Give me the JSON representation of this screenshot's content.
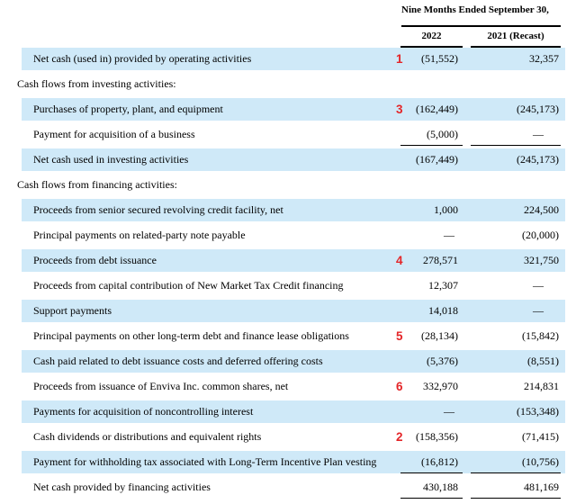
{
  "title": "Condensed consolidated statement of cash flows excerpt",
  "colors": {
    "highlight": "#cfe9f8",
    "annotation_red": "#e42528",
    "rule": "#000000",
    "text": "#000000"
  },
  "header": {
    "period_label": "Nine Months Ended September 30,",
    "col1": "2022",
    "col2": "2021 (Recast)"
  },
  "rows": [
    {
      "type": "item",
      "highlight": true,
      "marker": "1",
      "label": "Net cash (used in) provided by operating activities",
      "v2022": "(51,552)",
      "v2021": "32,357",
      "rule_below": false
    },
    {
      "type": "section",
      "highlight": false,
      "marker": "",
      "label": "Cash flows from investing activities:",
      "v2022": "",
      "v2021": "",
      "rule_below": false
    },
    {
      "type": "item",
      "highlight": true,
      "marker": "3",
      "label": "Purchases of property, plant, and equipment",
      "v2022": "(162,449)",
      "v2021": "(245,173)",
      "rule_below": false
    },
    {
      "type": "item",
      "highlight": false,
      "marker": "",
      "label": "Payment for acquisition of a business",
      "v2022": "(5,000)",
      "v2021": "—",
      "rule_below": true
    },
    {
      "type": "item",
      "highlight": true,
      "marker": "",
      "label": "Net cash used in investing activities",
      "v2022": "(167,449)",
      "v2021": "(245,173)",
      "rule_below": false
    },
    {
      "type": "section",
      "highlight": false,
      "marker": "",
      "label": "Cash flows from financing activities:",
      "v2022": "",
      "v2021": "",
      "rule_below": false
    },
    {
      "type": "item",
      "highlight": true,
      "marker": "",
      "label": "Proceeds from senior secured revolving credit facility, net",
      "v2022": "1,000",
      "v2021": "224,500",
      "rule_below": false
    },
    {
      "type": "item",
      "highlight": false,
      "marker": "",
      "label": "Principal payments on related-party note payable",
      "v2022": "—",
      "v2021": "(20,000)",
      "rule_below": false
    },
    {
      "type": "item",
      "highlight": true,
      "marker": "4",
      "label": "Proceeds from debt issuance",
      "v2022": "278,571",
      "v2021": "321,750",
      "rule_below": false
    },
    {
      "type": "item",
      "highlight": false,
      "marker": "",
      "label": "Proceeds from capital contribution of New Market Tax Credit financing",
      "v2022": "12,307",
      "v2021": "—",
      "rule_below": false
    },
    {
      "type": "item",
      "highlight": true,
      "marker": "",
      "label": "Support payments",
      "v2022": "14,018",
      "v2021": "—",
      "rule_below": false
    },
    {
      "type": "item",
      "highlight": false,
      "marker": "5",
      "label": "Principal payments on other long-term debt and finance lease obligations",
      "v2022": "(28,134)",
      "v2021": "(15,842)",
      "rule_below": false
    },
    {
      "type": "item",
      "highlight": true,
      "marker": "",
      "label": "Cash paid related to debt issuance costs and deferred offering costs",
      "v2022": "(5,376)",
      "v2021": "(8,551)",
      "rule_below": false
    },
    {
      "type": "item",
      "highlight": false,
      "marker": "6",
      "label": "Proceeds from issuance of Enviva Inc. common shares, net",
      "v2022": "332,970",
      "v2021": "214,831",
      "rule_below": false
    },
    {
      "type": "item",
      "highlight": true,
      "marker": "",
      "label": "Payments for acquisition of noncontrolling interest",
      "v2022": "—",
      "v2021": "(153,348)",
      "rule_below": false
    },
    {
      "type": "item",
      "highlight": false,
      "marker": "2",
      "label": "Cash dividends or distributions and equivalent rights",
      "v2022": "(158,356)",
      "v2021": "(71,415)",
      "rule_below": false
    },
    {
      "type": "item",
      "highlight": true,
      "marker": "",
      "label": "Payment for withholding tax associated with Long-Term Incentive Plan vesting",
      "v2022": "(16,812)",
      "v2021": "(10,756)",
      "rule_below": true
    },
    {
      "type": "item",
      "highlight": false,
      "marker": "",
      "label": "Net cash provided by financing activities",
      "v2022": "430,188",
      "v2021": "481,169",
      "rule_below": true
    }
  ]
}
